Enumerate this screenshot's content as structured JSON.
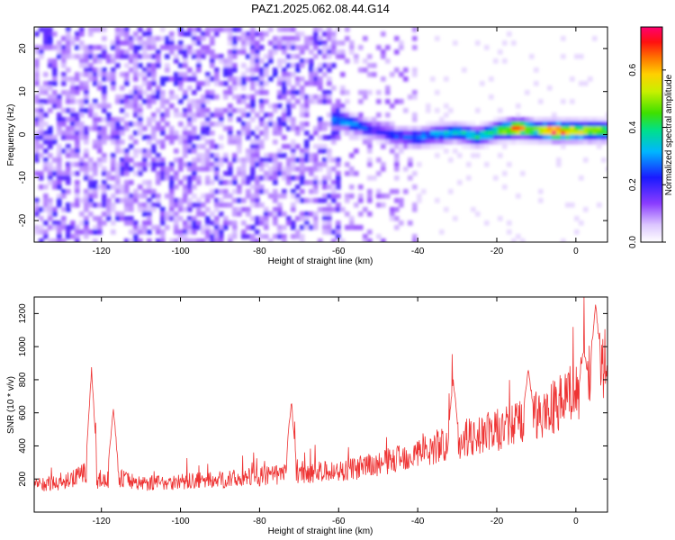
{
  "title": "PAZ1.2025.062.08.44.G14",
  "chart_data": [
    {
      "type": "heatmap",
      "xlabel": "Height of straight line (km)",
      "ylabel": "Frequency (Hz)",
      "xlim": [
        -137,
        8
      ],
      "ylim": [
        -25,
        25
      ],
      "xticks": [
        -120,
        -100,
        -80,
        -60,
        -40,
        -20,
        0
      ],
      "yticks": [
        -20,
        -10,
        0,
        10,
        20
      ],
      "colorbar": {
        "label": "Normalized spectral amplitude",
        "ticks": [
          0.0,
          0.2,
          0.4,
          0.6
        ],
        "range": [
          0.0,
          0.75
        ]
      },
      "dominant_ridge": {
        "x": [
          -60,
          -55,
          -50,
          -45,
          -40,
          -35,
          -30,
          -25,
          -20,
          -15,
          -10,
          -5,
          0,
          5,
          8
        ],
        "frequency": [
          3.5,
          2.0,
          0.8,
          -0.5,
          -0.7,
          0.0,
          0.5,
          -0.5,
          0.8,
          1.5,
          1.0,
          0.8,
          0.8,
          0.8,
          0.8
        ],
        "amplitude": [
          0.3,
          0.25,
          0.2,
          0.22,
          0.28,
          0.3,
          0.32,
          0.35,
          0.4,
          0.65,
          0.45,
          0.72,
          0.55,
          0.5,
          0.45
        ]
      },
      "background_amplitude": [
        0.05,
        0.15
      ],
      "background_x_range": [
        -137,
        -60
      ],
      "grid": false
    },
    {
      "type": "line",
      "xlabel": "Height of straight line (km)",
      "ylabel": "SNR (10 * v/v)",
      "xlim": [
        -137,
        8
      ],
      "ylim": [
        0,
        1300
      ],
      "xticks": [
        -120,
        -100,
        -80,
        -60,
        -40,
        -20,
        0
      ],
      "yticks": [
        200,
        400,
        600,
        800,
        1000,
        1200
      ],
      "color": "#ee3333",
      "trend": {
        "x": [
          -137,
          -130,
          -123,
          -121,
          -115,
          -110,
          -100,
          -90,
          -80,
          -75,
          -70,
          -60,
          -50,
          -40,
          -30,
          -20,
          -10,
          0,
          5,
          8
        ],
        "y": [
          160,
          170,
          240,
          180,
          200,
          170,
          180,
          190,
          210,
          220,
          230,
          240,
          280,
          350,
          420,
          480,
          560,
          700,
          820,
          860
        ]
      },
      "spikes": [
        {
          "x": -122.5,
          "y": 880
        },
        {
          "x": -117,
          "y": 640
        },
        {
          "x": -72,
          "y": 690
        },
        {
          "x": -31,
          "y": 820
        },
        {
          "x": -12,
          "y": 900
        },
        {
          "x": 2,
          "y": 1010
        },
        {
          "x": 5,
          "y": 1290
        }
      ],
      "grid": false
    }
  ]
}
